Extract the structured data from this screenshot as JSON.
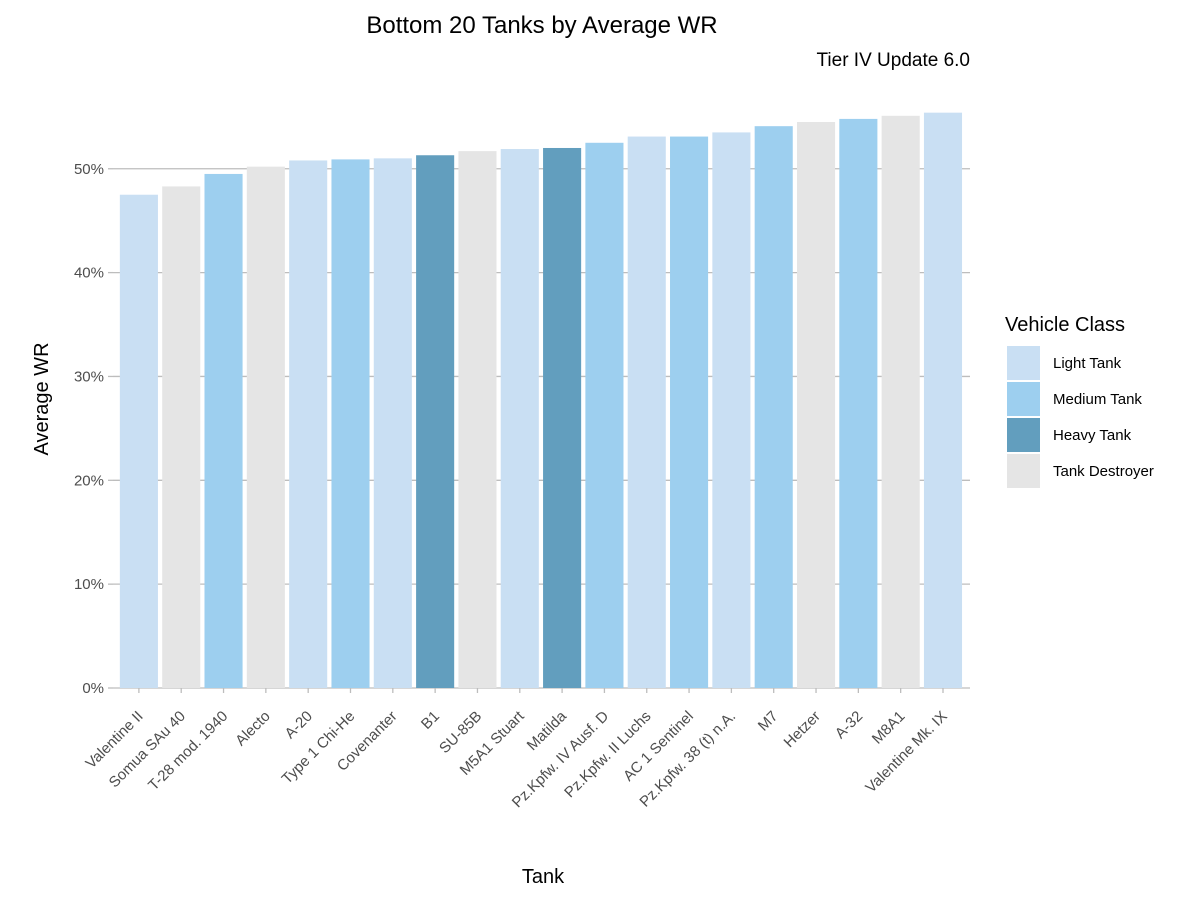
{
  "chart_data": {
    "type": "bar",
    "title": "Bottom 20 Tanks by Average WR",
    "subtitle": "Tier IV Update 6.0",
    "xlabel": "Tank",
    "ylabel": "Average WR",
    "ylim": [
      0,
      0.56
    ],
    "y_ticks": [
      0,
      0.1,
      0.2,
      0.3,
      0.4,
      0.5
    ],
    "y_tick_labels": [
      "0%",
      "10%",
      "20%",
      "30%",
      "40%",
      "50%"
    ],
    "grid": "horizontal major",
    "legend_title": "Vehicle Class",
    "legend_position": "right",
    "classes": [
      {
        "name": "Light Tank",
        "color": "#c9dff3"
      },
      {
        "name": "Medium Tank",
        "color": "#9dcfef"
      },
      {
        "name": "Heavy Tank",
        "color": "#629ebe"
      },
      {
        "name": "Tank Destroyer",
        "color": "#e5e5e5"
      }
    ],
    "bars": [
      {
        "tank": "Valentine II",
        "value": 0.475,
        "class": "Light Tank"
      },
      {
        "tank": "Somua SAu 40",
        "value": 0.483,
        "class": "Tank Destroyer"
      },
      {
        "tank": "T-28 mod. 1940",
        "value": 0.495,
        "class": "Medium Tank"
      },
      {
        "tank": "Alecto",
        "value": 0.502,
        "class": "Tank Destroyer"
      },
      {
        "tank": "A-20",
        "value": 0.508,
        "class": "Light Tank"
      },
      {
        "tank": "Type 1 Chi-He",
        "value": 0.509,
        "class": "Medium Tank"
      },
      {
        "tank": "Covenanter",
        "value": 0.51,
        "class": "Light Tank"
      },
      {
        "tank": "B1",
        "value": 0.513,
        "class": "Heavy Tank"
      },
      {
        "tank": "SU-85B",
        "value": 0.517,
        "class": "Tank Destroyer"
      },
      {
        "tank": "M5A1 Stuart",
        "value": 0.519,
        "class": "Light Tank"
      },
      {
        "tank": "Matilda",
        "value": 0.52,
        "class": "Heavy Tank"
      },
      {
        "tank": "Pz.Kpfw. IV Ausf. D",
        "value": 0.525,
        "class": "Medium Tank"
      },
      {
        "tank": "Pz.Kpfw. II Luchs",
        "value": 0.531,
        "class": "Light Tank"
      },
      {
        "tank": "AC 1 Sentinel",
        "value": 0.531,
        "class": "Medium Tank"
      },
      {
        "tank": "Pz.Kpfw. 38 (t) n.A.",
        "value": 0.535,
        "class": "Light Tank"
      },
      {
        "tank": "M7",
        "value": 0.541,
        "class": "Medium Tank"
      },
      {
        "tank": "Hetzer",
        "value": 0.545,
        "class": "Tank Destroyer"
      },
      {
        "tank": "A-32",
        "value": 0.548,
        "class": "Medium Tank"
      },
      {
        "tank": "M8A1",
        "value": 0.551,
        "class": "Tank Destroyer"
      },
      {
        "tank": "Valentine Mk. IX",
        "value": 0.554,
        "class": "Light Tank"
      }
    ]
  }
}
